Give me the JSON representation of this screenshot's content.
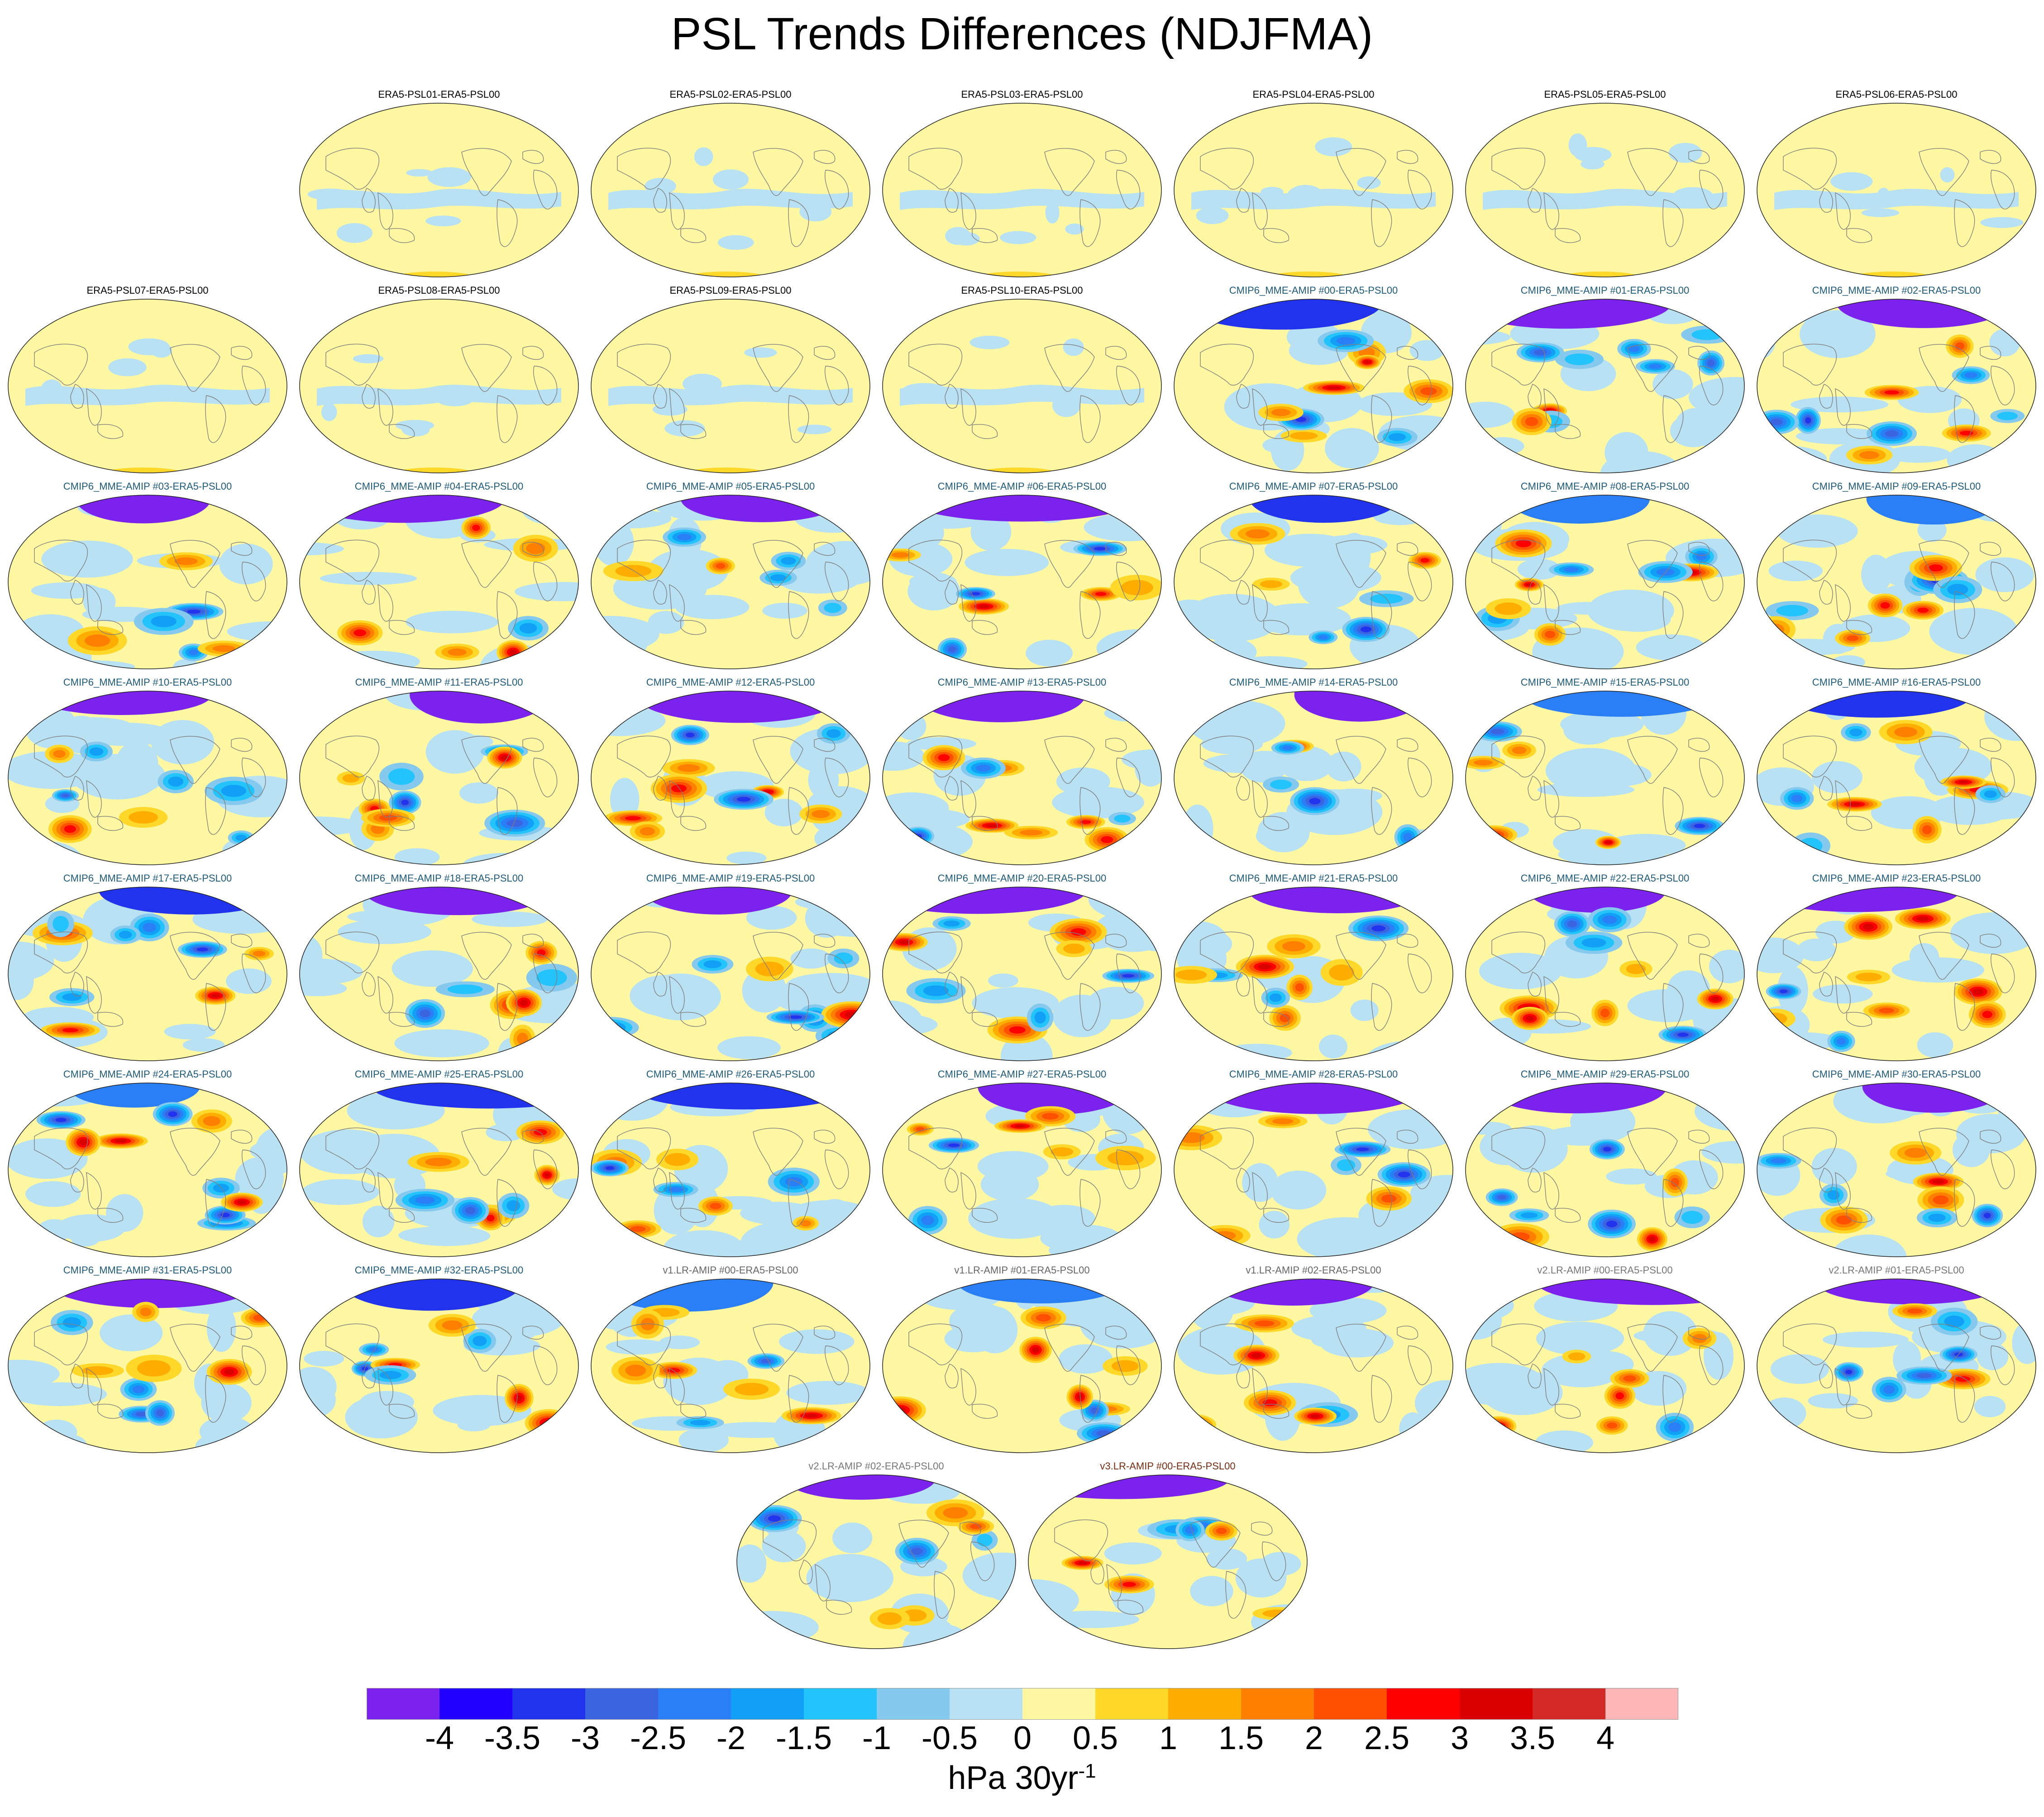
{
  "title": "PSL Trends Differences (NDJFMA)",
  "colorbar": {
    "colors": [
      "#7b22ee",
      "#2200ff",
      "#2233ee",
      "#3a64e0",
      "#2a7ff7",
      "#12a0f7",
      "#22c4fb",
      "#86c9ee",
      "#b8e1f3",
      "#fff7a1",
      "#ffd82a",
      "#ffad00",
      "#ff8000",
      "#ff5000",
      "#ff0000",
      "#db0000",
      "#d32a28",
      "#ffb6b6"
    ],
    "labels": [
      "-4",
      "-3.5",
      "-3",
      "-2.5",
      "-2",
      "-1.5",
      "-1",
      "-0.5",
      "0",
      "0.5",
      "1",
      "1.5",
      "2",
      "2.5",
      "3",
      "3.5",
      "4"
    ],
    "unit_main": "hPa 30yr",
    "unit_exp": "-1"
  },
  "style": {
    "era5_title_color": "#000000",
    "cmip6_title_color": "#1d5b7c",
    "v1_title_color": "#666666",
    "v2_title_color": "#777777",
    "v3_title_color": "#7a2a10"
  },
  "panels": [
    {
      "title": "ERA5-PSL01-ERA5-PSL00",
      "group": "era5",
      "row": 0,
      "col": 1,
      "seed": 1
    },
    {
      "title": "ERA5-PSL02-ERA5-PSL00",
      "group": "era5",
      "row": 0,
      "col": 2,
      "seed": 2
    },
    {
      "title": "ERA5-PSL03-ERA5-PSL00",
      "group": "era5",
      "row": 0,
      "col": 3,
      "seed": 3
    },
    {
      "title": "ERA5-PSL04-ERA5-PSL00",
      "group": "era5",
      "row": 0,
      "col": 4,
      "seed": 4
    },
    {
      "title": "ERA5-PSL05-ERA5-PSL00",
      "group": "era5",
      "row": 0,
      "col": 5,
      "seed": 5
    },
    {
      "title": "ERA5-PSL06-ERA5-PSL00",
      "group": "era5",
      "row": 0,
      "col": 6,
      "seed": 6
    },
    {
      "title": "ERA5-PSL07-ERA5-PSL00",
      "group": "era5",
      "row": 1,
      "col": 0,
      "seed": 7
    },
    {
      "title": "ERA5-PSL08-ERA5-PSL00",
      "group": "era5",
      "row": 1,
      "col": 1,
      "seed": 8
    },
    {
      "title": "ERA5-PSL09-ERA5-PSL00",
      "group": "era5",
      "row": 1,
      "col": 2,
      "seed": 9
    },
    {
      "title": "ERA5-PSL10-ERA5-PSL00",
      "group": "era5",
      "row": 1,
      "col": 3,
      "seed": 10
    },
    {
      "title": "CMIP6_MME-AMIP  #00-ERA5-PSL00",
      "group": "cmip6",
      "row": 1,
      "col": 4,
      "seed": 11
    },
    {
      "title": "CMIP6_MME-AMIP  #01-ERA5-PSL00",
      "group": "cmip6",
      "row": 1,
      "col": 5,
      "seed": 12
    },
    {
      "title": "CMIP6_MME-AMIP  #02-ERA5-PSL00",
      "group": "cmip6",
      "row": 1,
      "col": 6,
      "seed": 13
    },
    {
      "title": "CMIP6_MME-AMIP  #03-ERA5-PSL00",
      "group": "cmip6",
      "row": 2,
      "col": 0,
      "seed": 14
    },
    {
      "title": "CMIP6_MME-AMIP  #04-ERA5-PSL00",
      "group": "cmip6",
      "row": 2,
      "col": 1,
      "seed": 15
    },
    {
      "title": "CMIP6_MME-AMIP  #05-ERA5-PSL00",
      "group": "cmip6",
      "row": 2,
      "col": 2,
      "seed": 16
    },
    {
      "title": "CMIP6_MME-AMIP  #06-ERA5-PSL00",
      "group": "cmip6",
      "row": 2,
      "col": 3,
      "seed": 17
    },
    {
      "title": "CMIP6_MME-AMIP  #07-ERA5-PSL00",
      "group": "cmip6",
      "row": 2,
      "col": 4,
      "seed": 18
    },
    {
      "title": "CMIP6_MME-AMIP  #08-ERA5-PSL00",
      "group": "cmip6",
      "row": 2,
      "col": 5,
      "seed": 19
    },
    {
      "title": "CMIP6_MME-AMIP  #09-ERA5-PSL00",
      "group": "cmip6",
      "row": 2,
      "col": 6,
      "seed": 20
    },
    {
      "title": "CMIP6_MME-AMIP  #10-ERA5-PSL00",
      "group": "cmip6",
      "row": 3,
      "col": 0,
      "seed": 21
    },
    {
      "title": "CMIP6_MME-AMIP  #11-ERA5-PSL00",
      "group": "cmip6",
      "row": 3,
      "col": 1,
      "seed": 22
    },
    {
      "title": "CMIP6_MME-AMIP  #12-ERA5-PSL00",
      "group": "cmip6",
      "row": 3,
      "col": 2,
      "seed": 23
    },
    {
      "title": "CMIP6_MME-AMIP  #13-ERA5-PSL00",
      "group": "cmip6",
      "row": 3,
      "col": 3,
      "seed": 24
    },
    {
      "title": "CMIP6_MME-AMIP  #14-ERA5-PSL00",
      "group": "cmip6",
      "row": 3,
      "col": 4,
      "seed": 25
    },
    {
      "title": "CMIP6_MME-AMIP  #15-ERA5-PSL00",
      "group": "cmip6",
      "row": 3,
      "col": 5,
      "seed": 26
    },
    {
      "title": "CMIP6_MME-AMIP  #16-ERA5-PSL00",
      "group": "cmip6",
      "row": 3,
      "col": 6,
      "seed": 27
    },
    {
      "title": "CMIP6_MME-AMIP  #17-ERA5-PSL00",
      "group": "cmip6",
      "row": 4,
      "col": 0,
      "seed": 28
    },
    {
      "title": "CMIP6_MME-AMIP  #18-ERA5-PSL00",
      "group": "cmip6",
      "row": 4,
      "col": 1,
      "seed": 29
    },
    {
      "title": "CMIP6_MME-AMIP  #19-ERA5-PSL00",
      "group": "cmip6",
      "row": 4,
      "col": 2,
      "seed": 30
    },
    {
      "title": "CMIP6_MME-AMIP  #20-ERA5-PSL00",
      "group": "cmip6",
      "row": 4,
      "col": 3,
      "seed": 31
    },
    {
      "title": "CMIP6_MME-AMIP  #21-ERA5-PSL00",
      "group": "cmip6",
      "row": 4,
      "col": 4,
      "seed": 32
    },
    {
      "title": "CMIP6_MME-AMIP  #22-ERA5-PSL00",
      "group": "cmip6",
      "row": 4,
      "col": 5,
      "seed": 33
    },
    {
      "title": "CMIP6_MME-AMIP  #23-ERA5-PSL00",
      "group": "cmip6",
      "row": 4,
      "col": 6,
      "seed": 34
    },
    {
      "title": "CMIP6_MME-AMIP  #24-ERA5-PSL00",
      "group": "cmip6",
      "row": 5,
      "col": 0,
      "seed": 35
    },
    {
      "title": "CMIP6_MME-AMIP  #25-ERA5-PSL00",
      "group": "cmip6",
      "row": 5,
      "col": 1,
      "seed": 36
    },
    {
      "title": "CMIP6_MME-AMIP  #26-ERA5-PSL00",
      "group": "cmip6",
      "row": 5,
      "col": 2,
      "seed": 37
    },
    {
      "title": "CMIP6_MME-AMIP  #27-ERA5-PSL00",
      "group": "cmip6",
      "row": 5,
      "col": 3,
      "seed": 38
    },
    {
      "title": "CMIP6_MME-AMIP  #28-ERA5-PSL00",
      "group": "cmip6",
      "row": 5,
      "col": 4,
      "seed": 39
    },
    {
      "title": "CMIP6_MME-AMIP  #29-ERA5-PSL00",
      "group": "cmip6",
      "row": 5,
      "col": 5,
      "seed": 40
    },
    {
      "title": "CMIP6_MME-AMIP  #30-ERA5-PSL00",
      "group": "cmip6",
      "row": 5,
      "col": 6,
      "seed": 41
    },
    {
      "title": "CMIP6_MME-AMIP  #31-ERA5-PSL00",
      "group": "cmip6",
      "row": 6,
      "col": 0,
      "seed": 42
    },
    {
      "title": "CMIP6_MME-AMIP  #32-ERA5-PSL00",
      "group": "cmip6",
      "row": 6,
      "col": 1,
      "seed": 43
    },
    {
      "title": "v1.LR-AMIP  #00-ERA5-PSL00",
      "group": "v1",
      "row": 6,
      "col": 2,
      "seed": 44
    },
    {
      "title": "v1.LR-AMIP  #01-ERA5-PSL00",
      "group": "v1",
      "row": 6,
      "col": 3,
      "seed": 45
    },
    {
      "title": "v1.LR-AMIP  #02-ERA5-PSL00",
      "group": "v1",
      "row": 6,
      "col": 4,
      "seed": 46
    },
    {
      "title": "v2.LR-AMIP  #00-ERA5-PSL00",
      "group": "v2",
      "row": 6,
      "col": 5,
      "seed": 47
    },
    {
      "title": "v2.LR-AMIP  #01-ERA5-PSL00",
      "group": "v2",
      "row": 6,
      "col": 6,
      "seed": 48
    },
    {
      "title": "v2.LR-AMIP  #02-ERA5-PSL00",
      "group": "v2",
      "row": 7,
      "col": 2.5,
      "seed": 49
    },
    {
      "title": "v3.LR-AMIP  #00-ERA5-PSL00",
      "group": "v3",
      "row": 7,
      "col": 3.5,
      "seed": 50
    }
  ]
}
